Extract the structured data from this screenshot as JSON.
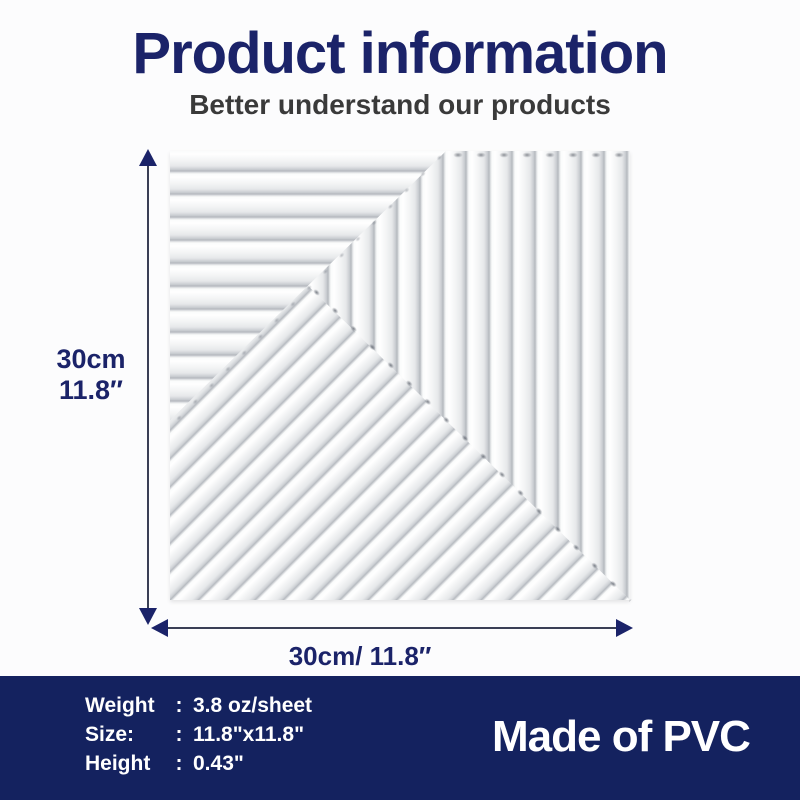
{
  "header": {
    "title": "Product information",
    "subtitle": "Better understand our products"
  },
  "product_panel": {
    "description": "white 3D PVC wall panel with geometric ridge pattern",
    "regions": [
      "horizontal-ridges-top-left",
      "vertical-ridges-top-right",
      "diagonal-ridges-bottom"
    ]
  },
  "dimensions": {
    "side": {
      "line1": "30cm",
      "line2": "11.8″"
    },
    "bottom": {
      "label": "30cm/ 11.8″"
    }
  },
  "footer": {
    "specs": [
      {
        "label": "Weight",
        "colon": ":",
        "value": "3.8 oz/sheet"
      },
      {
        "label": "Size:",
        "colon": ":",
        "value": "11.8\"x11.8\""
      },
      {
        "label": "Height",
        "colon": ":",
        "value": "0.43\""
      }
    ],
    "made_of": "Made of PVC"
  },
  "colors": {
    "navy_text": "#1b2369",
    "footer_background": "#14225f",
    "arrow": "#1b2369"
  }
}
